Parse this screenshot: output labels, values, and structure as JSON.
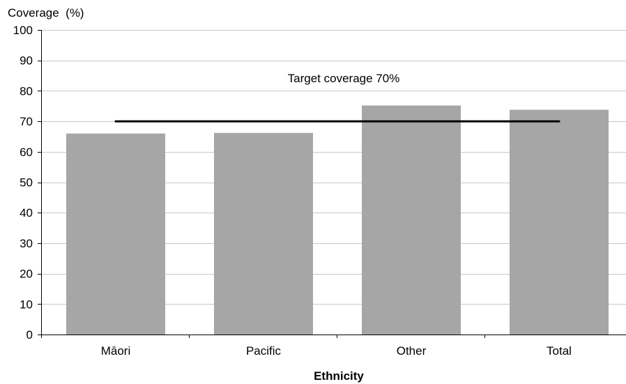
{
  "chart_data": {
    "type": "bar",
    "categories": [
      "Māori",
      "Pacific",
      "Other",
      "Total"
    ],
    "values": [
      66,
      66.2,
      75.2,
      73.8
    ],
    "title": "",
    "xlabel": "Ethnicity",
    "ylabel": "Coverage  (%)",
    "ylim": [
      0,
      100
    ],
    "yticks": [
      0,
      10,
      20,
      30,
      40,
      50,
      60,
      70,
      80,
      90,
      100
    ],
    "grid": true,
    "legend": "none",
    "target": {
      "value": 70,
      "label": "Target coverage 70%"
    },
    "colors": {
      "bar": "#a6a6a6",
      "grid": "#c8c8c8",
      "axis": "#000000",
      "target_line": "#000000"
    }
  }
}
